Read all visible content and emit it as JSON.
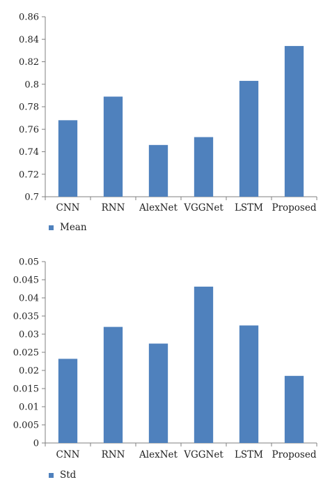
{
  "colors": {
    "bar": "#4f81bd",
    "axis": "#7f7f7f",
    "text": "#222222"
  },
  "chart_data": [
    {
      "type": "bar",
      "categories": [
        "CNN",
        "RNN",
        "AlexNet",
        "VGGNet",
        "LSTM",
        "Proposed"
      ],
      "series": [
        {
          "name": "Mean",
          "values": [
            0.768,
            0.789,
            0.746,
            0.753,
            0.803,
            0.834
          ]
        }
      ],
      "ylim": [
        0.7,
        0.86
      ],
      "yticks": [
        "0.7",
        "0.72",
        "0.74",
        "0.76",
        "0.78",
        "0.8",
        "0.82",
        "0.84",
        "0.86"
      ],
      "grid": false,
      "legend": "bottom-left"
    },
    {
      "type": "bar",
      "categories": [
        "CNN",
        "RNN",
        "AlexNet",
        "VGGNet",
        "LSTM",
        "Proposed"
      ],
      "series": [
        {
          "name": "Std",
          "values": [
            0.0232,
            0.032,
            0.0274,
            0.0431,
            0.0324,
            0.0185
          ]
        }
      ],
      "ylim": [
        0,
        0.05
      ],
      "yticks": [
        "0",
        "0.005",
        "0.01",
        "0.015",
        "0.02",
        "0.025",
        "0.03",
        "0.035",
        "0.04",
        "0.045",
        "0.05"
      ],
      "grid": false,
      "legend": "bottom-left"
    }
  ]
}
